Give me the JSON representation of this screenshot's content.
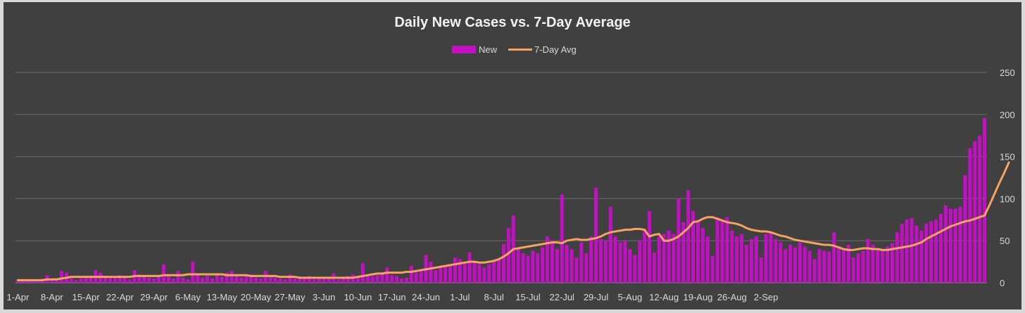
{
  "chart_data": {
    "type": "bar",
    "title": "Daily New Cases vs. 7-Day Average",
    "x_start": "1-Apr",
    "x_tick_labels": [
      "1-Apr",
      "8-Apr",
      "15-Apr",
      "22-Apr",
      "29-Apr",
      "6-May",
      "13-May",
      "20-May",
      "27-May",
      "3-Jun",
      "10-Jun",
      "17-Jun",
      "24-Jun",
      "1-Jul",
      "8-Jul",
      "15-Jul",
      "22-Jul",
      "29-Jul",
      "5-Aug",
      "12-Aug",
      "19-Aug",
      "26-Aug",
      "2-Sep"
    ],
    "y_ticks": [
      "0",
      "50",
      "100",
      "150",
      "200",
      "250"
    ],
    "ylim": [
      0,
      250
    ],
    "grid": true,
    "legend_position": "top",
    "colors": {
      "background": "#404040",
      "bars": "#c410c4",
      "line": "#f4a460",
      "grid": "#6b6b6b"
    },
    "series": [
      {
        "name": "New",
        "kind": "bar",
        "values": [
          3,
          3,
          2,
          4,
          2,
          5,
          9,
          3,
          5,
          14,
          12,
          5,
          3,
          5,
          7,
          8,
          15,
          12,
          7,
          8,
          6,
          9,
          6,
          4,
          15,
          10,
          8,
          6,
          5,
          8,
          22,
          8,
          5,
          14,
          6,
          4,
          25,
          10,
          6,
          8,
          5,
          10,
          7,
          12,
          14,
          8,
          6,
          9,
          10,
          6,
          5,
          14,
          8,
          6,
          5,
          4,
          10,
          5,
          7,
          6,
          8,
          4,
          7,
          5,
          6,
          11,
          4,
          5,
          8,
          10,
          6,
          23,
          10,
          8,
          9,
          12,
          18,
          9,
          8,
          5,
          6,
          20,
          12,
          15,
          33,
          25,
          15,
          18,
          20,
          22,
          30,
          28,
          24,
          36,
          25,
          22,
          18,
          22,
          25,
          28,
          46,
          65,
          80,
          40,
          35,
          32,
          38,
          35,
          42,
          55,
          50,
          40,
          105,
          45,
          40,
          30,
          48,
          35,
          55,
          113,
          52,
          50,
          90,
          55,
          48,
          50,
          40,
          33,
          50,
          62,
          85,
          36,
          55,
          58,
          62,
          58,
          100,
          72,
          110,
          85,
          75,
          65,
          55,
          32,
          78,
          75,
          78,
          62,
          55,
          58,
          45,
          52,
          55,
          30,
          58,
          60,
          52,
          48,
          40,
          45,
          42,
          48,
          43,
          38,
          28,
          40,
          38,
          37,
          60,
          42,
          40,
          45,
          30,
          35,
          38,
          52,
          45,
          40,
          38,
          43,
          47,
          60,
          70,
          75,
          77,
          68,
          62,
          70,
          73,
          75,
          82,
          92,
          88,
          88,
          90,
          128,
          160,
          168,
          175,
          196
        ]
      },
      {
        "name": "7-Day Avg",
        "kind": "line",
        "values": [
          3,
          3,
          3,
          3,
          3,
          3,
          4,
          4,
          4,
          5,
          6,
          7,
          7,
          7,
          7,
          7,
          7,
          7,
          7,
          7,
          7,
          7,
          7,
          7,
          8,
          8,
          8,
          8,
          8,
          8,
          9,
          9,
          9,
          9,
          9,
          10,
          10,
          10,
          10,
          10,
          10,
          10,
          10,
          9,
          9,
          9,
          9,
          9,
          8,
          8,
          8,
          8,
          8,
          8,
          7,
          7,
          7,
          7,
          6,
          6,
          6,
          6,
          6,
          6,
          6,
          6,
          6,
          6,
          6,
          6,
          7,
          8,
          9,
          10,
          11,
          11,
          12,
          12,
          12,
          12,
          13,
          13,
          14,
          15,
          16,
          17,
          18,
          19,
          20,
          21,
          22,
          23,
          24,
          25,
          25,
          24,
          24,
          25,
          26,
          28,
          31,
          35,
          40,
          41,
          42,
          43,
          44,
          45,
          46,
          47,
          48,
          48,
          47,
          50,
          51,
          52,
          51,
          51,
          52,
          53,
          55,
          58,
          60,
          61,
          62,
          63,
          63,
          64,
          64,
          63,
          55,
          57,
          58,
          50,
          50,
          52,
          55,
          60,
          65,
          72,
          73,
          76,
          78,
          78,
          76,
          74,
          72,
          71,
          70,
          68,
          65,
          63,
          62,
          61,
          61,
          60,
          58,
          56,
          55,
          53,
          51,
          50,
          49,
          48,
          47,
          46,
          45,
          45,
          44,
          42,
          40,
          39,
          39,
          40,
          41,
          41,
          40,
          40,
          39,
          39,
          40,
          41,
          42,
          43,
          44,
          46,
          48,
          52,
          55,
          58,
          61,
          64,
          67,
          69,
          71,
          73,
          74,
          76,
          78,
          80,
          92,
          105,
          118,
          130,
          143
        ]
      }
    ]
  }
}
